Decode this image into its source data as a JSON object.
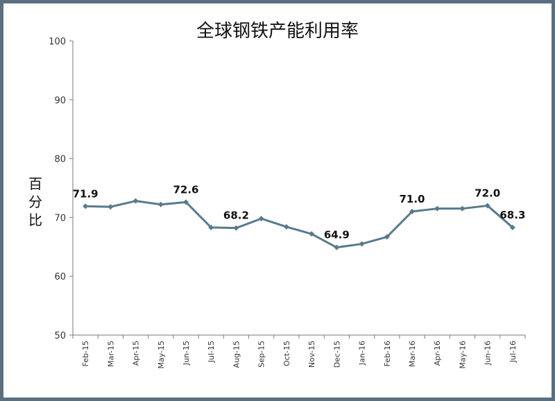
{
  "chart_data": {
    "type": "line",
    "title": "全球钢铁产能利用率",
    "ylabel": "百分比",
    "xlabel": "",
    "ylim": [
      50,
      100
    ],
    "yticks": [
      50,
      60,
      70,
      80,
      90,
      100
    ],
    "grid": false,
    "categories": [
      "Feb-15",
      "Mar-15",
      "Apr-15",
      "May-15",
      "Jun-15",
      "Jul-15",
      "Aug-15",
      "Sep-15",
      "Oct-15",
      "Nov-15",
      "Dec-15",
      "Jan-16",
      "Feb-16",
      "Mar-16",
      "Apr-16",
      "May-16",
      "Jun-16",
      "Jul-16"
    ],
    "series": [
      {
        "color": "#587a8c",
        "values": [
          71.9,
          71.8,
          72.8,
          72.2,
          72.6,
          68.3,
          68.2,
          69.8,
          68.4,
          67.2,
          64.9,
          65.5,
          66.7,
          71.0,
          71.5,
          71.5,
          72.0,
          68.3
        ]
      }
    ],
    "data_labels": [
      {
        "index": 0,
        "text": "71.9"
      },
      {
        "index": 4,
        "text": "72.6"
      },
      {
        "index": 6,
        "text": "68.2"
      },
      {
        "index": 10,
        "text": "64.9"
      },
      {
        "index": 13,
        "text": "71.0"
      },
      {
        "index": 16,
        "text": "72.0"
      },
      {
        "index": 17,
        "text": "68.3"
      }
    ]
  }
}
